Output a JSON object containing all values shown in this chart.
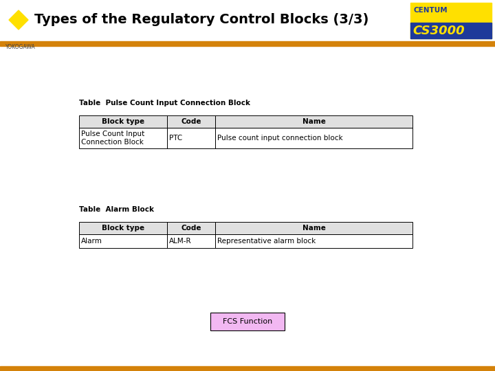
{
  "title": "Types of the Regulatory Control Blocks (3/3)",
  "bg_color": "#ffffff",
  "header_bar_color": "#D4820A",
  "diamond_color": "#FFE000",
  "title_color": "#000000",
  "title_fontsize": 14,
  "yokogawa_text": "YOKOGAWA",
  "table1_title": "Table  Pulse Count Input Connection Block",
  "table1_headers": [
    "Block type",
    "Code",
    "Name"
  ],
  "table1_row1_col1": "Pulse Count Input\nConnection Block",
  "table1_row1_col2": "PTC",
  "table1_row1_col3": "Pulse count input connection block",
  "table2_title": "Table  Alarm Block",
  "table2_headers": [
    "Block type",
    "Code",
    "Name"
  ],
  "table2_row1_col1": "Alarm",
  "table2_row1_col2": "ALM-R",
  "table2_row1_col3": "Representative alarm block",
  "fcs_button_text": "FCS Function",
  "fcs_button_bg": "#F2B8F2",
  "fcs_button_border": "#000000",
  "bottom_bar_color": "#D4820A",
  "logo_yellow": "#FFE000",
  "logo_blue": "#1E3A9A",
  "logo_text_centum": "CENTUM",
  "logo_text_cs": "CS3000"
}
